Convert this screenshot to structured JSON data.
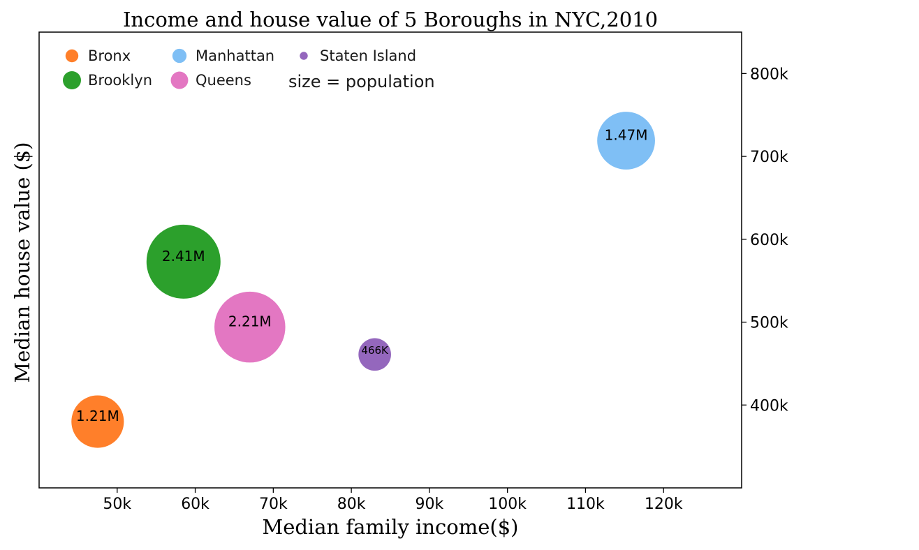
{
  "chart_data": {
    "type": "scatter",
    "title": "Income and house value of 5 Boroughs in NYC,2010",
    "xlabel": "Median family income($)",
    "ylabel": "Median house value ($)",
    "xlim": [
      40000,
      130000
    ],
    "ylim": [
      300000,
      850000
    ],
    "x_ticks": [
      50000,
      60000,
      70000,
      80000,
      90000,
      100000,
      110000,
      120000
    ],
    "x_tick_labels": [
      "50k",
      "60k",
      "70k",
      "80k",
      "90k",
      "100k",
      "110k",
      "120k"
    ],
    "y_ticks": [
      400000,
      500000,
      600000,
      700000,
      800000
    ],
    "y_tick_labels": [
      "400k",
      "500k",
      "600k",
      "700k",
      "800k"
    ],
    "y_axis_side": "right",
    "grid": false,
    "legend_position": "top-left",
    "size_note": "size = population",
    "series": [
      {
        "name": "Bronx",
        "x": 47500,
        "y": 380000,
        "population": 1210000,
        "label": "1.21M",
        "color": "#ff7f2a"
      },
      {
        "name": "Brooklyn",
        "x": 58500,
        "y": 573000,
        "population": 2410000,
        "label": "2.41M",
        "color": "#2ca02c"
      },
      {
        "name": "Manhattan",
        "x": 115200,
        "y": 719000,
        "population": 1470000,
        "label": "1.47M",
        "color": "#7fbff5"
      },
      {
        "name": "Queens",
        "x": 67000,
        "y": 494000,
        "population": 2210000,
        "label": "2.21M",
        "color": "#e377c2"
      },
      {
        "name": "Staten Island",
        "x": 83000,
        "y": 461000,
        "population": 466000,
        "label": "466K",
        "color": "#9467bd"
      }
    ]
  }
}
